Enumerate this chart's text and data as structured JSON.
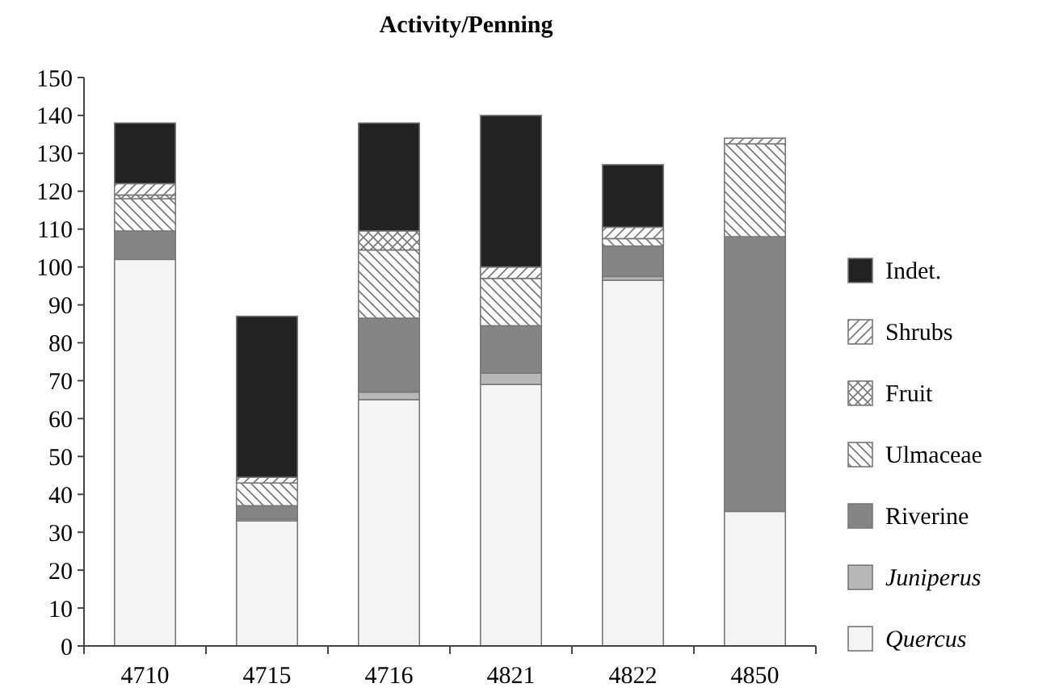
{
  "chart_data": {
    "type": "bar",
    "title": "Activity/Penning",
    "categories": [
      "4710",
      "4715",
      "4716",
      "4821",
      "4822",
      "4850"
    ],
    "stacked": true,
    "ylim": [
      0,
      150
    ],
    "yticks": [
      0,
      10,
      20,
      30,
      40,
      50,
      60,
      70,
      80,
      90,
      100,
      110,
      120,
      130,
      140,
      150
    ],
    "grid": false,
    "legend": "right",
    "series": [
      {
        "name": "Quercus",
        "color": "#f4f4f4",
        "values": [
          102,
          33,
          65,
          69,
          96.5,
          35.5
        ]
      },
      {
        "name": "Juniperus",
        "color": "#b8b8b8",
        "values": [
          0,
          0.5,
          2,
          3,
          1,
          0
        ]
      },
      {
        "name": "Riverine",
        "color": "#858585",
        "values": [
          7.5,
          3.5,
          19.5,
          12.5,
          8,
          72.5
        ]
      },
      {
        "name": "Ulmaceae",
        "color": "#777777",
        "values": [
          8.5,
          6,
          18,
          12.5,
          2,
          24.5
        ]
      },
      {
        "name": "Fruit",
        "color": "#777777",
        "values": [
          1,
          0,
          5,
          0,
          0,
          0
        ]
      },
      {
        "name": "Shrubs",
        "color": "#777777",
        "values": [
          3,
          1.5,
          0,
          3,
          3,
          1.5
        ]
      },
      {
        "name": "Indet.",
        "color": "#222222",
        "values": [
          16,
          42.5,
          28.5,
          40,
          16.5,
          0
        ]
      }
    ]
  }
}
